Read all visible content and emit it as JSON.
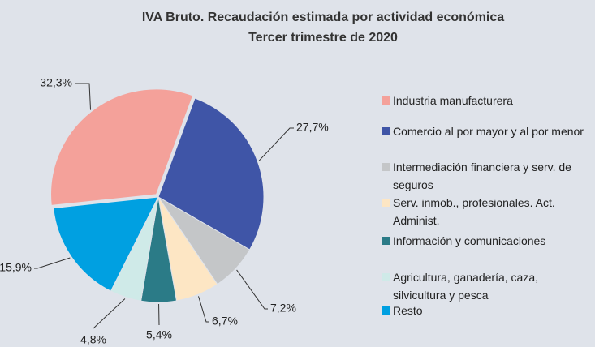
{
  "chart_data": {
    "type": "pie",
    "title": "IVA Bruto. Recaudación estimada por actividad económica",
    "subtitle": "Tercer trimestre de 2020",
    "categories": [
      "Industria manufacturera",
      "Comercio al por mayor y al por menor",
      "Intermediación financiera y serv. de seguros",
      "Serv. inmob., profesionales. Act. Administ.",
      "Información y comunicaciones",
      "Agricultura, ganadería, caza, silvicultura y pesca",
      "Resto"
    ],
    "values": [
      32.3,
      27.7,
      7.2,
      6.7,
      5.4,
      4.8,
      15.9
    ],
    "value_labels": [
      "32,3%",
      "27,7%",
      "7,2%",
      "6,7%",
      "5,4%",
      "4,8%",
      "15,9%"
    ],
    "colors": [
      "#f4a19a",
      "#3f55a7",
      "#c4c6c8",
      "#fde6c4",
      "#2b7b87",
      "#cfeae8",
      "#00a0e1"
    ],
    "legend": "right"
  }
}
